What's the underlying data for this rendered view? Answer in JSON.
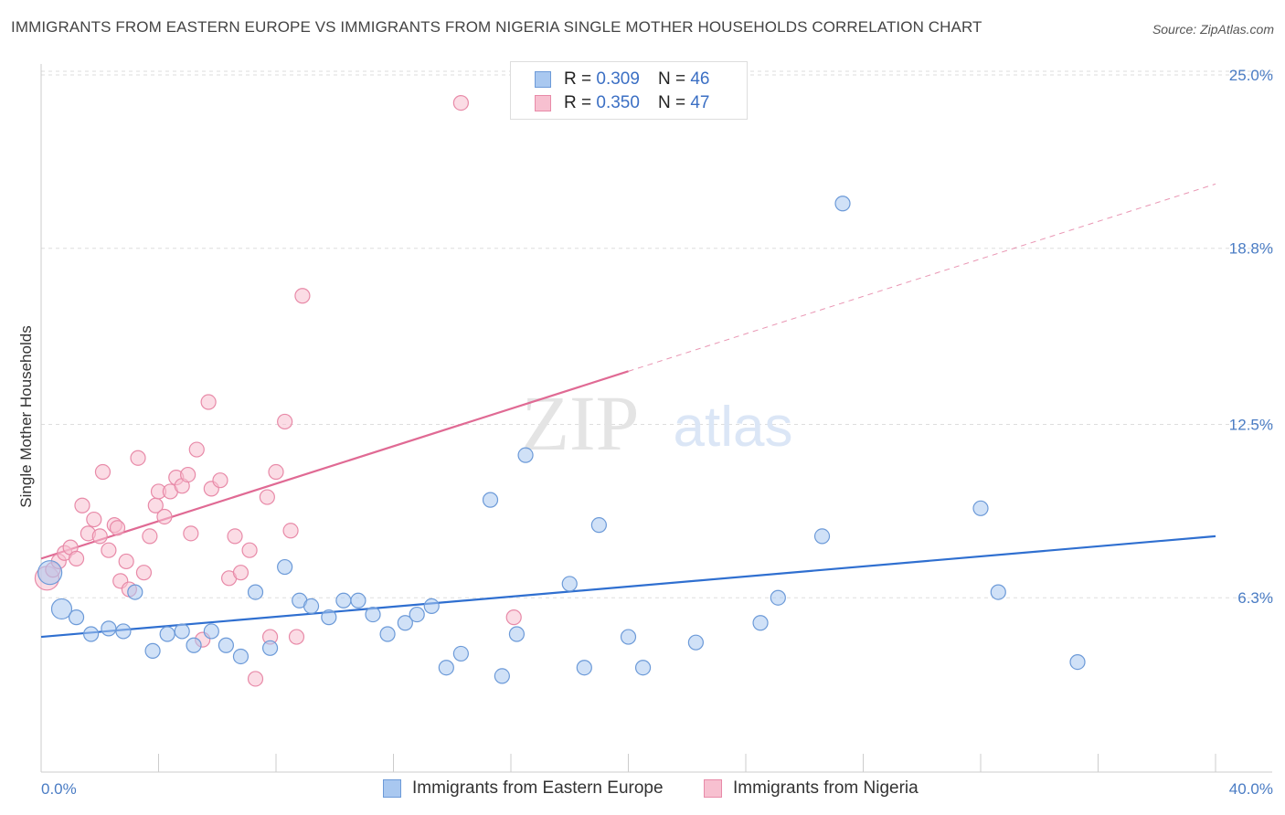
{
  "title": "IMMIGRANTS FROM EASTERN EUROPE VS IMMIGRANTS FROM NIGERIA SINGLE MOTHER HOUSEHOLDS CORRELATION CHART",
  "source": "Source: ZipAtlas.com",
  "watermark": {
    "zip": "ZIP",
    "atlas": "atlas"
  },
  "legend": {
    "r_label": "R =",
    "n_label": "N =",
    "series": [
      {
        "r": "0.309",
        "n": "46"
      },
      {
        "r": "0.350",
        "n": "47"
      }
    ]
  },
  "colors": {
    "blue_fill": "#a9c8f0",
    "blue_stroke": "#6c9ad8",
    "blue_line": "#2f6fd0",
    "pink_fill": "#f7c0d0",
    "pink_stroke": "#e88aa8",
    "pink_line": "#e06a94",
    "axis_text": "#4a7cc4"
  },
  "chart_data": {
    "type": "scatter",
    "title": "IMMIGRANTS FROM EASTERN EUROPE VS IMMIGRANTS FROM NIGERIA SINGLE MOTHER HOUSEHOLDS CORRELATION CHART",
    "xlabel": "",
    "ylabel": "Single Mother Households",
    "xlim": [
      0,
      40
    ],
    "ylim": [
      0,
      25.8
    ],
    "x_tick_labels": [
      "0.0%",
      "40.0%"
    ],
    "y_ticks": [
      6.3,
      12.5,
      18.8,
      25.0
    ],
    "y_tick_labels": [
      "6.3%",
      "12.5%",
      "18.8%",
      "25.0%"
    ],
    "grid": true,
    "legend_position": "top-center",
    "series": [
      {
        "name": "Immigrants from Eastern Europe",
        "color": "#a9c8f0",
        "points": [
          [
            0.3,
            7.2
          ],
          [
            0.7,
            5.9
          ],
          [
            1.2,
            5.6
          ],
          [
            1.7,
            5.0
          ],
          [
            2.3,
            5.2
          ],
          [
            2.8,
            5.1
          ],
          [
            3.2,
            6.5
          ],
          [
            3.8,
            4.4
          ],
          [
            4.3,
            5.0
          ],
          [
            4.8,
            5.1
          ],
          [
            5.2,
            4.6
          ],
          [
            5.8,
            5.1
          ],
          [
            6.3,
            4.6
          ],
          [
            6.8,
            4.2
          ],
          [
            7.3,
            6.5
          ],
          [
            7.8,
            4.5
          ],
          [
            8.3,
            7.4
          ],
          [
            8.8,
            6.2
          ],
          [
            9.2,
            6.0
          ],
          [
            9.8,
            5.6
          ],
          [
            10.3,
            6.2
          ],
          [
            10.8,
            6.2
          ],
          [
            11.3,
            5.7
          ],
          [
            11.8,
            5.0
          ],
          [
            12.4,
            5.4
          ],
          [
            12.8,
            5.7
          ],
          [
            13.3,
            6.0
          ],
          [
            13.8,
            3.8
          ],
          [
            14.3,
            4.3
          ],
          [
            15.3,
            9.8
          ],
          [
            15.7,
            3.5
          ],
          [
            16.2,
            5.0
          ],
          [
            16.5,
            11.4
          ],
          [
            18.0,
            6.8
          ],
          [
            18.5,
            3.8
          ],
          [
            19.0,
            8.9
          ],
          [
            20.0,
            4.9
          ],
          [
            20.5,
            3.8
          ],
          [
            22.3,
            4.7
          ],
          [
            24.5,
            5.4
          ],
          [
            25.1,
            6.3
          ],
          [
            26.6,
            8.5
          ],
          [
            27.3,
            20.4
          ],
          [
            32.0,
            9.5
          ],
          [
            32.6,
            6.5
          ],
          [
            35.3,
            4.0
          ]
        ],
        "trend": {
          "x": [
            0,
            40
          ],
          "y": [
            4.9,
            8.5
          ]
        }
      },
      {
        "name": "Immigrants from Nigeria",
        "color": "#f7c0d0",
        "points": [
          [
            0.2,
            7.0
          ],
          [
            0.4,
            7.3
          ],
          [
            0.6,
            7.6
          ],
          [
            0.8,
            7.9
          ],
          [
            1.0,
            8.1
          ],
          [
            1.2,
            7.7
          ],
          [
            1.4,
            9.6
          ],
          [
            1.6,
            8.6
          ],
          [
            1.8,
            9.1
          ],
          [
            2.0,
            8.5
          ],
          [
            2.1,
            10.8
          ],
          [
            2.3,
            8.0
          ],
          [
            2.5,
            8.9
          ],
          [
            2.6,
            8.8
          ],
          [
            2.7,
            6.9
          ],
          [
            2.9,
            7.6
          ],
          [
            3.0,
            6.6
          ],
          [
            3.3,
            11.3
          ],
          [
            3.5,
            7.2
          ],
          [
            3.7,
            8.5
          ],
          [
            3.9,
            9.6
          ],
          [
            4.0,
            10.1
          ],
          [
            4.2,
            9.2
          ],
          [
            4.4,
            10.1
          ],
          [
            4.6,
            10.6
          ],
          [
            4.8,
            10.3
          ],
          [
            5.0,
            10.7
          ],
          [
            5.1,
            8.6
          ],
          [
            5.3,
            11.6
          ],
          [
            5.5,
            4.8
          ],
          [
            5.7,
            13.3
          ],
          [
            5.8,
            10.2
          ],
          [
            6.1,
            10.5
          ],
          [
            6.4,
            7.0
          ],
          [
            6.6,
            8.5
          ],
          [
            6.8,
            7.2
          ],
          [
            7.1,
            8.0
          ],
          [
            7.3,
            3.4
          ],
          [
            7.7,
            9.9
          ],
          [
            7.8,
            4.9
          ],
          [
            8.0,
            10.8
          ],
          [
            8.3,
            12.6
          ],
          [
            8.5,
            8.7
          ],
          [
            8.7,
            4.9
          ],
          [
            8.9,
            17.1
          ],
          [
            14.3,
            24.0
          ],
          [
            16.1,
            5.6
          ]
        ],
        "trend": {
          "x": [
            0,
            20
          ],
          "y": [
            7.7,
            14.4
          ]
        },
        "trend_extension": {
          "x": [
            20,
            40
          ],
          "y": [
            14.4,
            21.1
          ]
        }
      }
    ]
  }
}
